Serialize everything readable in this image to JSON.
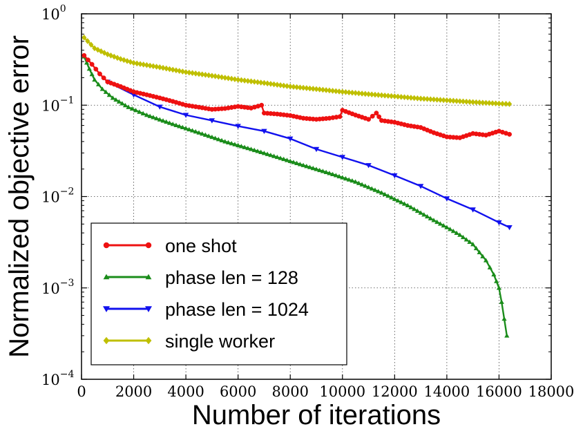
{
  "chart_data": {
    "type": "line",
    "title": "",
    "xlabel": "Number of iterations",
    "ylabel": "Normalized objective error",
    "xlim": [
      0,
      18000
    ],
    "ylim": [
      0.0001,
      1
    ],
    "yscale": "log",
    "grid": true,
    "legend_position": "bottom-left",
    "x_ticks": [
      {
        "value": 0,
        "label": "0"
      },
      {
        "value": 2000,
        "label": "2000"
      },
      {
        "value": 4000,
        "label": "4000"
      },
      {
        "value": 6000,
        "label": "6000"
      },
      {
        "value": 8000,
        "label": "8000"
      },
      {
        "value": 10000,
        "label": "10000"
      },
      {
        "value": 12000,
        "label": "12000"
      },
      {
        "value": 14000,
        "label": "14000"
      },
      {
        "value": 16000,
        "label": "16000"
      },
      {
        "value": 18000,
        "label": "18000"
      }
    ],
    "y_ticks": [
      {
        "value": 1,
        "base": "10",
        "exp": "0"
      },
      {
        "value": 0.1,
        "base": "10",
        "exp": "−1"
      },
      {
        "value": 0.01,
        "base": "10",
        "exp": "−2"
      },
      {
        "value": 0.001,
        "base": "10",
        "exp": "−3"
      },
      {
        "value": 0.0001,
        "base": "10",
        "exp": "−4"
      }
    ],
    "series": [
      {
        "name": "one shot",
        "color": "#ee1111",
        "marker": "circle",
        "x": [
          100,
          400,
          700,
          1000,
          1500,
          2000,
          2500,
          3000,
          3500,
          4000,
          4500,
          5000,
          5500,
          6000,
          6500,
          6900,
          7000,
          7500,
          8000,
          8500,
          9000,
          9500,
          9900,
          10000,
          10500,
          11000,
          11300,
          11500,
          12000,
          12500,
          13000,
          13500,
          14000,
          14500,
          15000,
          15500,
          16000,
          16400
        ],
        "values": [
          0.35,
          0.28,
          0.22,
          0.18,
          0.16,
          0.14,
          0.13,
          0.12,
          0.11,
          0.1,
          0.095,
          0.09,
          0.092,
          0.097,
          0.093,
          0.1,
          0.082,
          0.08,
          0.077,
          0.072,
          0.07,
          0.072,
          0.075,
          0.088,
          0.078,
          0.07,
          0.082,
          0.068,
          0.065,
          0.06,
          0.057,
          0.05,
          0.045,
          0.044,
          0.049,
          0.047,
          0.052,
          0.048
        ]
      },
      {
        "name": "phase len = 128",
        "color": "#1a8c1a",
        "marker": "triangle-up",
        "x": [
          100,
          300,
          500,
          800,
          1200,
          1800,
          2500,
          3500,
          4500,
          5500,
          6500,
          7500,
          8500,
          9500,
          10500,
          11500,
          12500,
          13500,
          14000,
          14500,
          15000,
          15500,
          15800,
          16000,
          16100,
          16300
        ],
        "values": [
          0.34,
          0.25,
          0.19,
          0.15,
          0.12,
          0.095,
          0.078,
          0.062,
          0.05,
          0.04,
          0.033,
          0.027,
          0.022,
          0.018,
          0.0145,
          0.011,
          0.008,
          0.0055,
          0.0046,
          0.0038,
          0.003,
          0.002,
          0.0014,
          0.001,
          0.0007,
          0.0003
        ]
      },
      {
        "name": "phase len = 1024",
        "color": "#1111ee",
        "marker": "triangle-down",
        "x": [
          1000,
          2000,
          3000,
          4000,
          5000,
          6000,
          7000,
          8000,
          9000,
          10000,
          11000,
          12000,
          13000,
          14000,
          15000,
          16000,
          16400
        ],
        "values": [
          0.18,
          0.13,
          0.096,
          0.078,
          0.068,
          0.059,
          0.052,
          0.043,
          0.033,
          0.027,
          0.022,
          0.017,
          0.013,
          0.0095,
          0.0072,
          0.0052,
          0.0046
        ]
      },
      {
        "name": "single worker",
        "color": "#bfbf00",
        "marker": "diamond",
        "x": [
          100,
          500,
          1000,
          1500,
          2000,
          3000,
          4000,
          5000,
          6000,
          7000,
          8000,
          9000,
          10000,
          11000,
          12000,
          13000,
          14000,
          15000,
          16000,
          16400
        ],
        "values": [
          0.55,
          0.42,
          0.36,
          0.32,
          0.29,
          0.26,
          0.23,
          0.21,
          0.19,
          0.175,
          0.16,
          0.15,
          0.14,
          0.132,
          0.125,
          0.118,
          0.113,
          0.108,
          0.104,
          0.103
        ]
      }
    ]
  }
}
